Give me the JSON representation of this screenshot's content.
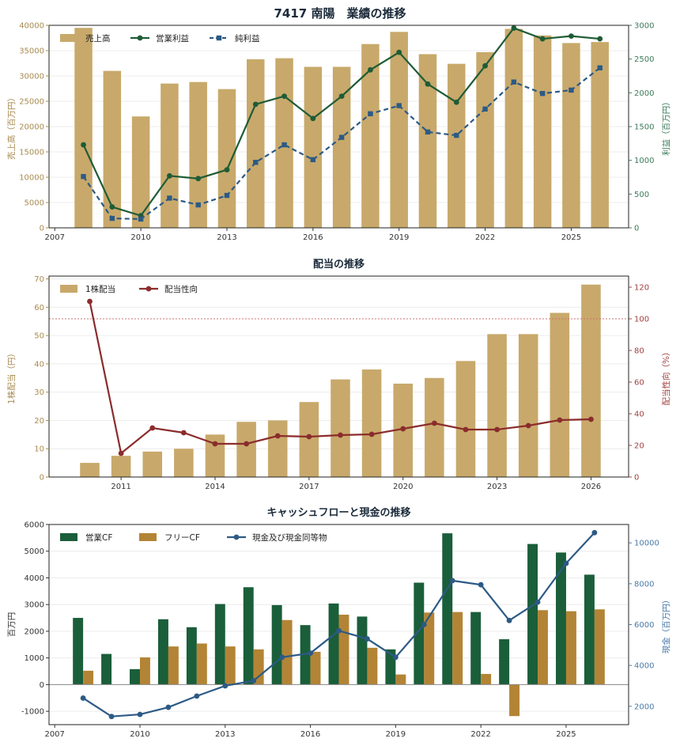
{
  "page_title": "7417 南陽　業績の推移",
  "colors": {
    "bar": "#c8a96b",
    "bar_stroke": "#b89a5e",
    "operating": "#1f5c36",
    "net": "#2c5a85",
    "payout": "#8b2c2c",
    "op_cf": "#1a5e3a",
    "free_cf": "#b38435",
    "cash": "#2c5a85",
    "left_axis_1": "#a88b50",
    "right_axis_1": "#3c7a5a",
    "left_axis_2": "#a88b50",
    "right_axis_2": "#a04040",
    "left_axis_3": "#333333",
    "right_axis_3": "#4a7aa8"
  },
  "chart_data": [
    {
      "type": "bar+line",
      "title": "",
      "x_ticks": [
        "2007",
        "2010",
        "2013",
        "2016",
        "2019",
        "2022",
        "2025"
      ],
      "xlim": [
        2006.8,
        2027.0
      ],
      "ylabel_left": "売上高（百万円）",
      "ylabel_right": "利益（百万円）",
      "ylim_left": [
        0,
        40000
      ],
      "ylim_right": [
        0,
        3000
      ],
      "y_ticks_left": [
        "0",
        "5000",
        "10000",
        "15000",
        "20000",
        "25000",
        "30000",
        "35000",
        "40000"
      ],
      "y_ticks_right": [
        "0",
        "500",
        "1000",
        "1500",
        "2000",
        "2500",
        "3000"
      ],
      "grid": true,
      "legend_position": "top-left",
      "years": [
        2008,
        2009,
        2010,
        2011,
        2012,
        2013,
        2014,
        2015,
        2016,
        2017,
        2018,
        2019,
        2020,
        2021,
        2022,
        2023,
        2024,
        2025,
        2026
      ],
      "series": [
        {
          "name": "売上高",
          "kind": "bar",
          "axis": "left",
          "values": [
            39500,
            31000,
            22000,
            28500,
            28800,
            27400,
            33300,
            33500,
            31800,
            31800,
            36300,
            38700,
            34300,
            32400,
            34700,
            39300,
            38000,
            36500,
            36700
          ]
        },
        {
          "name": "営業利益",
          "kind": "line",
          "axis": "right",
          "values": [
            1230,
            310,
            180,
            770,
            730,
            860,
            1830,
            1950,
            1620,
            1950,
            2340,
            2600,
            2130,
            1860,
            2400,
            2960,
            2800,
            2840,
            2800
          ]
        },
        {
          "name": "純利益",
          "kind": "line-dashed",
          "axis": "right",
          "values": [
            760,
            140,
            130,
            440,
            340,
            480,
            970,
            1230,
            1010,
            1340,
            1690,
            1810,
            1420,
            1370,
            1760,
            2160,
            1990,
            2040,
            2370
          ]
        }
      ]
    },
    {
      "type": "bar+line",
      "title": "配当の推移",
      "x_ticks": [
        "2011",
        "2014",
        "2017",
        "2020",
        "2023",
        "2026"
      ],
      "xlim": [
        2008.7,
        2027.2
      ],
      "ylabel_left": "1株配当（円）",
      "ylabel_right": "配当性向（%）",
      "ylim_left": [
        0,
        71
      ],
      "ylim_right": [
        0,
        127
      ],
      "y_ticks_left": [
        "0",
        "10",
        "20",
        "30",
        "40",
        "50",
        "60",
        "70"
      ],
      "y_ticks_right": [
        "0",
        "20",
        "40",
        "60",
        "80",
        "100",
        "120"
      ],
      "reference_line_right": 100,
      "grid": true,
      "legend_position": "top-left",
      "years": [
        2010,
        2011,
        2012,
        2013,
        2014,
        2015,
        2016,
        2017,
        2018,
        2019,
        2020,
        2021,
        2022,
        2023,
        2024,
        2025,
        2026
      ],
      "series": [
        {
          "name": "1株配当",
          "kind": "bar",
          "axis": "left",
          "values": [
            5,
            7.5,
            9,
            10,
            15,
            19.5,
            20,
            26.5,
            34.5,
            38,
            33,
            35,
            41,
            50.5,
            50.5,
            58,
            68
          ]
        },
        {
          "name": "配当性向",
          "kind": "line",
          "axis": "right",
          "values": [
            111,
            15,
            31,
            28,
            21,
            21,
            26,
            25.5,
            26.5,
            27,
            30.5,
            34,
            30,
            30,
            32.5,
            36,
            36.5
          ]
        }
      ]
    },
    {
      "type": "bar+line",
      "title": "キャッシュフローと現金の推移",
      "x_ticks": [
        "2007",
        "2010",
        "2013",
        "2016",
        "2019",
        "2022",
        "2025"
      ],
      "xlim": [
        2006.8,
        2027.2
      ],
      "ylabel_left": "百万円",
      "ylabel_right": "現金（百万円）",
      "ylim_left": [
        -1500,
        6000
      ],
      "ylim_right": [
        1100,
        10900
      ],
      "y_ticks_left": [
        "-1000",
        "0",
        "1000",
        "2000",
        "3000",
        "4000",
        "5000",
        "6000"
      ],
      "y_ticks_right": [
        "2000",
        "4000",
        "6000",
        "8000",
        "10000"
      ],
      "grid": true,
      "legend_position": "top-left",
      "years": [
        2008,
        2009,
        2010,
        2011,
        2012,
        2013,
        2014,
        2015,
        2016,
        2017,
        2018,
        2019,
        2020,
        2021,
        2022,
        2023,
        2024,
        2025,
        2026
      ],
      "series": [
        {
          "name": "営業CF",
          "kind": "bar",
          "axis": "left",
          "values": [
            2500,
            1150,
            580,
            2450,
            2150,
            3020,
            3650,
            2980,
            2230,
            3040,
            2550,
            1320,
            3820,
            5670,
            2720,
            1700,
            5270,
            4950,
            4120
          ]
        },
        {
          "name": "フリーCF",
          "kind": "bar",
          "axis": "left",
          "values": [
            520,
            0,
            1020,
            1430,
            1540,
            1430,
            1320,
            2420,
            1230,
            2620,
            1380,
            380,
            2700,
            2720,
            400,
            -1180,
            2790,
            2750,
            2820
          ]
        },
        {
          "name": "現金及び現金同等物",
          "kind": "line",
          "axis": "right",
          "values": [
            2400,
            1500,
            1600,
            1950,
            2500,
            3000,
            3250,
            4400,
            4600,
            5700,
            5300,
            4400,
            6000,
            8150,
            7950,
            6200,
            7100,
            9000,
            10500
          ]
        }
      ]
    }
  ]
}
